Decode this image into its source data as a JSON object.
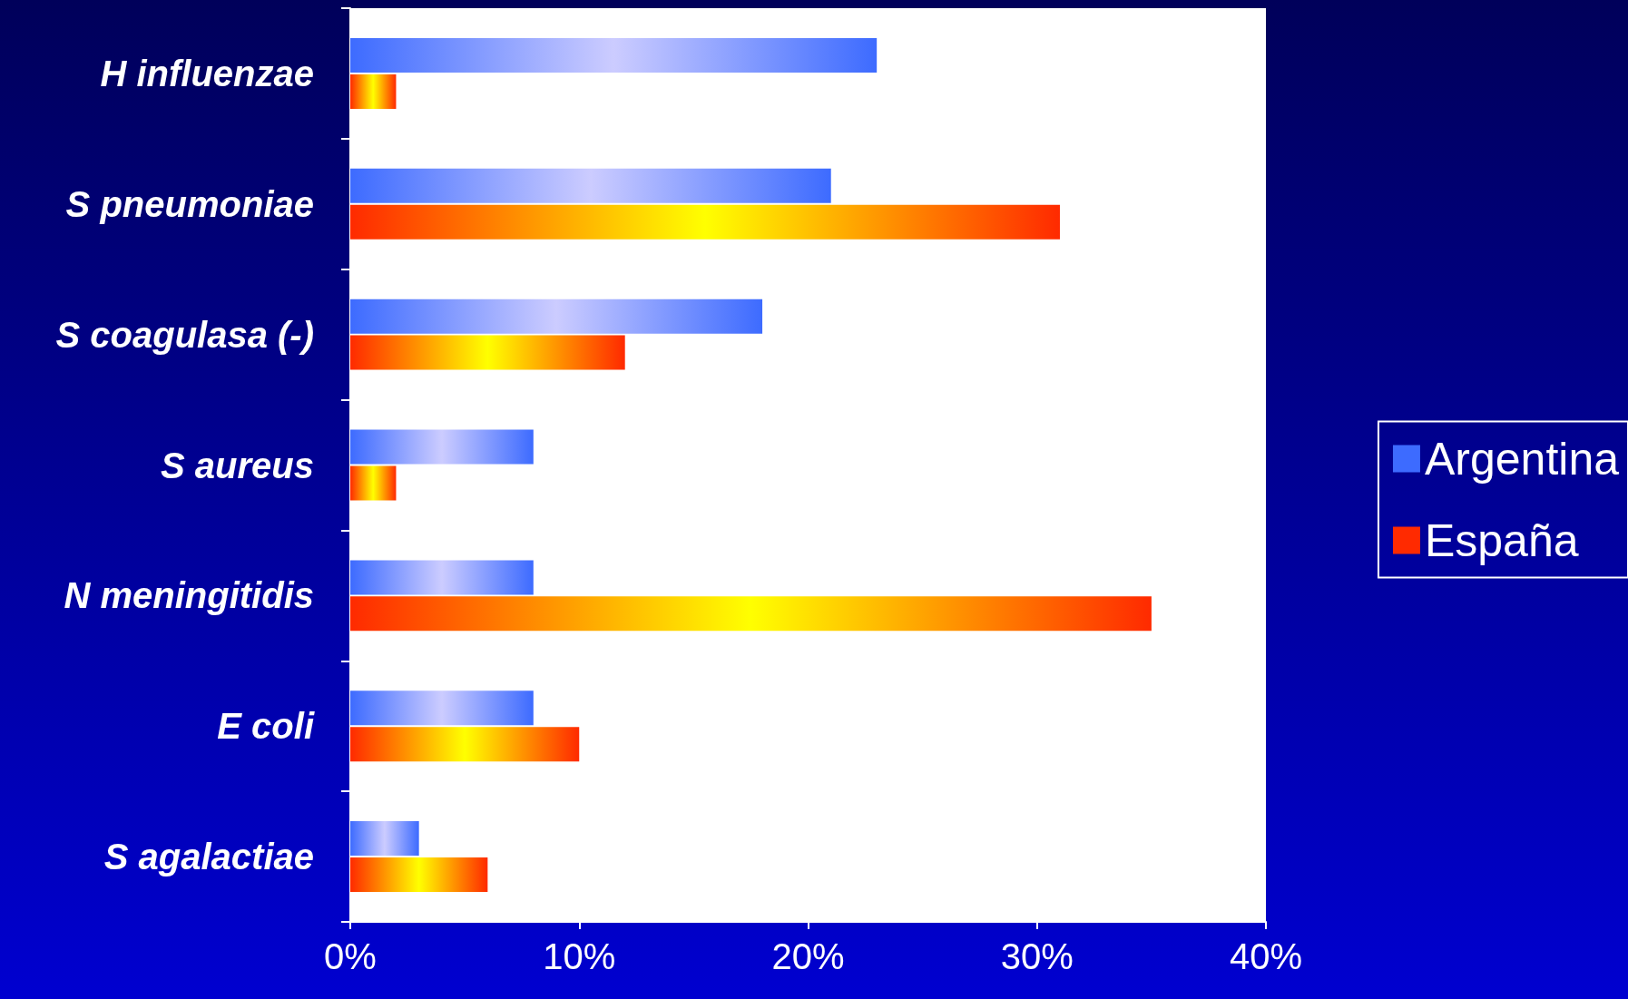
{
  "chart_data": {
    "type": "bar",
    "orientation": "horizontal",
    "categories": [
      "H influenzae",
      "S pneumoniae",
      "S coagulasa (-)",
      "S aureus",
      "N meningitidis",
      "E coli",
      "S agalactiae"
    ],
    "series": [
      {
        "name": "Argentina",
        "color": "#3d6bff",
        "values": [
          23,
          21,
          18,
          8,
          8,
          8,
          3
        ]
      },
      {
        "name": "España",
        "color": "#ff2a00",
        "values": [
          2,
          31,
          12,
          2,
          35,
          10,
          6
        ]
      }
    ],
    "xlim": [
      0,
      40
    ],
    "xticks": [
      {
        "value": 0,
        "label": "0%"
      },
      {
        "value": 10,
        "label": "10%"
      },
      {
        "value": 20,
        "label": "20%"
      },
      {
        "value": 30,
        "label": "30%"
      },
      {
        "value": 40,
        "label": "40%"
      }
    ],
    "grid": false,
    "legend": "right"
  }
}
